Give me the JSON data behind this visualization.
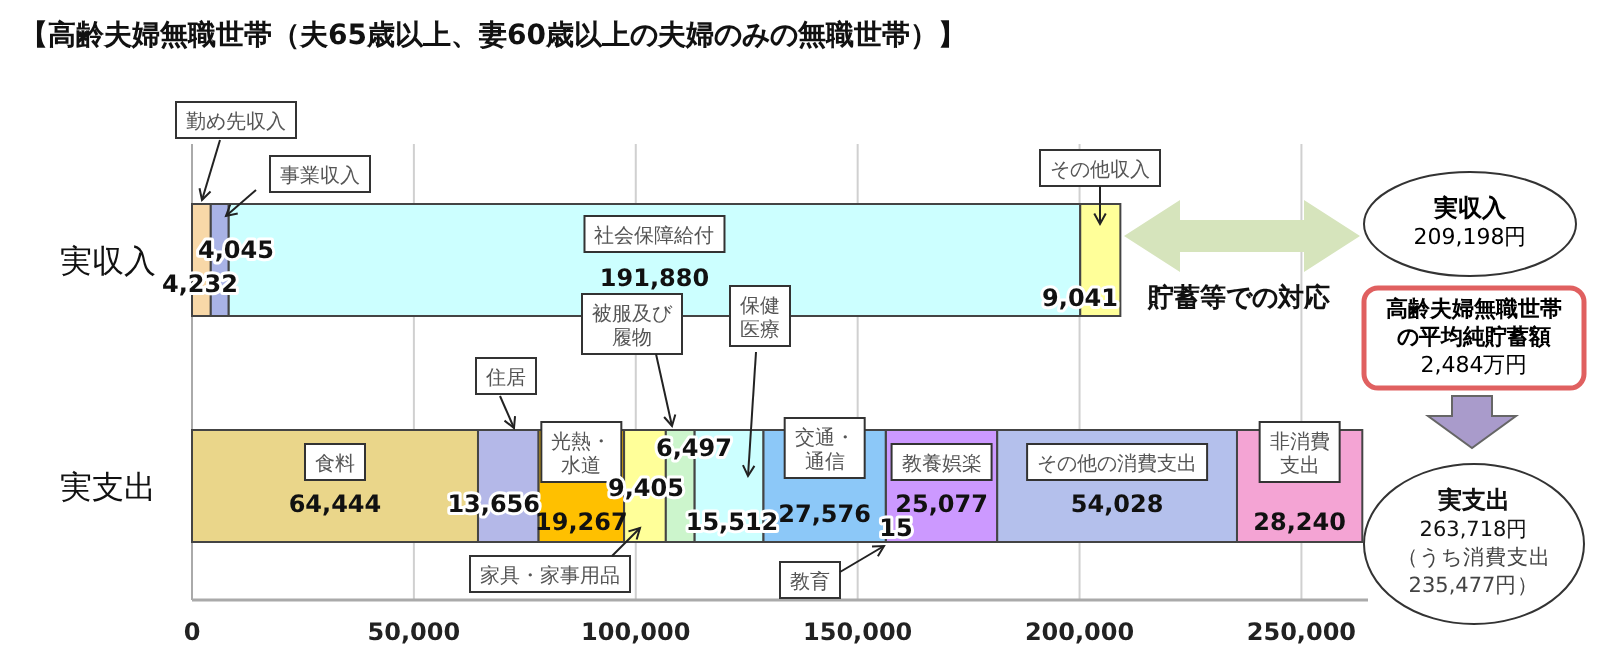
{
  "chart_data": {
    "type": "bar",
    "orientation": "horizontal",
    "stacked": true,
    "title": "【高齢夫婦無職世帯（夫65歳以上、妻60歳以上の夫婦のみの無職世帯）】",
    "categories": [
      "実収入",
      "実支出"
    ],
    "series": [
      {
        "name": "勤め先収入",
        "color": "#f8d8a8",
        "values": [
          4232,
          null
        ],
        "value_labels": [
          "4,232",
          null
        ]
      },
      {
        "name": "事業収入",
        "color": "#a9b3e6",
        "values": [
          4045,
          null
        ],
        "value_labels": [
          "4,045",
          null
        ]
      },
      {
        "name": "社会保障給付",
        "color": "#ccffff",
        "values": [
          191880,
          null
        ],
        "value_labels": [
          "191,880",
          null
        ]
      },
      {
        "name": "その他収入",
        "color": "#ffff99",
        "values": [
          9041,
          null
        ],
        "value_labels": [
          "9,041",
          null
        ]
      },
      {
        "name": "食料",
        "color": "#ead68a",
        "values": [
          null,
          64444
        ],
        "value_labels": [
          null,
          "64,444"
        ]
      },
      {
        "name": "住居",
        "color": "#b4b8e8",
        "values": [
          null,
          13656
        ],
        "value_labels": [
          null,
          "13,656"
        ]
      },
      {
        "name": "光熱・水道",
        "color": "#ffc000",
        "values": [
          null,
          19267
        ],
        "value_labels": [
          null,
          "19,267"
        ]
      },
      {
        "name": "家具・家事用品",
        "color": "#ffff99",
        "values": [
          null,
          9405
        ],
        "value_labels": [
          null,
          "9,405"
        ]
      },
      {
        "name": "被服及び履物",
        "color": "#ccf5cc",
        "values": [
          null,
          6497
        ],
        "value_labels": [
          null,
          "6,497"
        ]
      },
      {
        "name": "保健医療",
        "color": "#ccffff",
        "values": [
          null,
          15512
        ],
        "value_labels": [
          null,
          "15,512"
        ]
      },
      {
        "name": "交通・通信",
        "color": "#8cc8f8",
        "values": [
          null,
          27576
        ],
        "value_labels": [
          null,
          "27,576"
        ]
      },
      {
        "name": "教育",
        "color": "#8cc8f8",
        "values": [
          null,
          15
        ],
        "value_labels": [
          null,
          "15"
        ]
      },
      {
        "name": "教養娯楽",
        "color": "#cc99ff",
        "values": [
          null,
          25077
        ],
        "value_labels": [
          null,
          "25,077"
        ]
      },
      {
        "name": "その他の消費支出",
        "color": "#b4c0ec",
        "values": [
          null,
          54028
        ],
        "value_labels": [
          null,
          "54,028"
        ]
      },
      {
        "name": "非消費支出",
        "color": "#f4a4d4",
        "values": [
          null,
          28240
        ],
        "value_labels": [
          null,
          "28,240"
        ]
      }
    ],
    "xlim": [
      0,
      265000
    ],
    "xticks": [
      {
        "value": 0,
        "label": "0"
      },
      {
        "value": 50000,
        "label": "50,000"
      },
      {
        "value": 100000,
        "label": "100,000"
      },
      {
        "value": 150000,
        "label": "150,000"
      },
      {
        "value": 200000,
        "label": "200,000"
      },
      {
        "value": 250000,
        "label": "250,000"
      }
    ],
    "grid": "x",
    "annotations": [
      "貯蓄等での対応",
      "実収入",
      "209,198円",
      "高齢夫婦無職世帯",
      "の平均純貯蓄額",
      "2,484万円",
      "実支出",
      "263,718円",
      "（うち消費支出",
      "235,477円）"
    ]
  }
}
